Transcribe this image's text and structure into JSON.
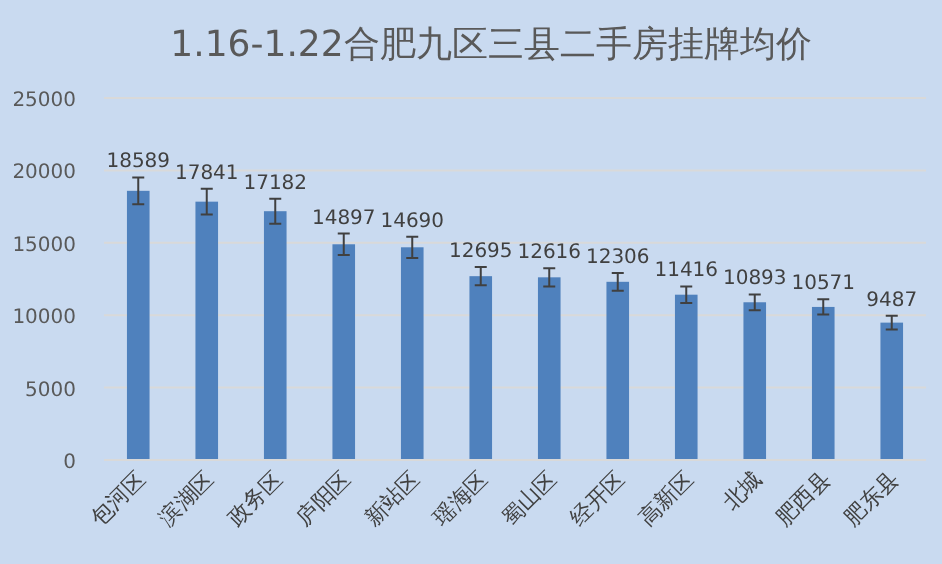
{
  "chart_data": {
    "type": "bar",
    "title": "1.16-1.22合肥九区三县二手房挂牌均价",
    "categories": [
      "包河区",
      "滨湖区",
      "政务区",
      "庐阳区",
      "新站区",
      "瑶海区",
      "蜀山区",
      "经开区",
      "高新区",
      "北城",
      "肥西县",
      "肥东县"
    ],
    "values": [
      18589,
      17841,
      17182,
      14897,
      14690,
      12695,
      12616,
      12306,
      11416,
      10893,
      10571,
      9487
    ],
    "errors": [
      929,
      892,
      859,
      745,
      735,
      635,
      631,
      615,
      571,
      545,
      529,
      474
    ],
    "color": "#4f81bd",
    "ylim": [
      0,
      25000
    ],
    "yticks": [
      0,
      5000,
      10000,
      15000,
      20000,
      25000
    ],
    "grid": "y",
    "data_labels": true
  }
}
